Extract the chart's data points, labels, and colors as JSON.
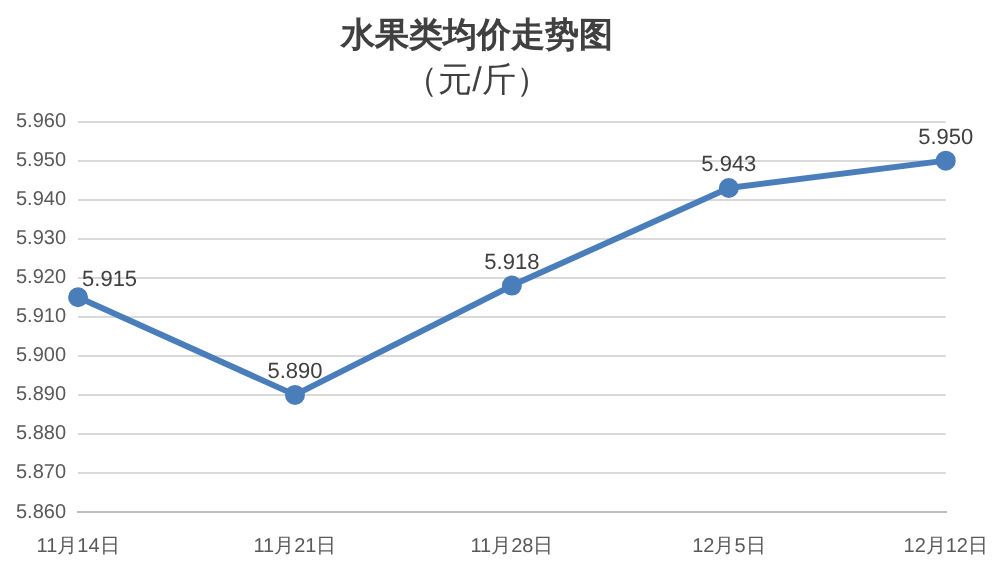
{
  "chart_data": {
    "type": "line",
    "title": "水果类均价走势图",
    "subtitle": "（元/斤）",
    "categories": [
      "11月14日",
      "11月21日",
      "11月28日",
      "12月5日",
      "12月12日"
    ],
    "series": [
      {
        "color": "#4a7ebb",
        "values": [
          5.915,
          5.89,
          5.918,
          5.943,
          5.95
        ],
        "value_labels": [
          "5.915",
          "5.890",
          "5.918",
          "5.943",
          "5.950"
        ]
      }
    ],
    "ylim": [
      5.86,
      5.96
    ],
    "yticks": [
      {
        "value": 5.86,
        "label": "5.860"
      },
      {
        "value": 5.87,
        "label": "5.870"
      },
      {
        "value": 5.88,
        "label": "5.880"
      },
      {
        "value": 5.89,
        "label": "5.890"
      },
      {
        "value": 5.9,
        "label": "5.900"
      },
      {
        "value": 5.91,
        "label": "5.910"
      },
      {
        "value": 5.92,
        "label": "5.920"
      },
      {
        "value": 5.93,
        "label": "5.930"
      },
      {
        "value": 5.94,
        "label": "5.940"
      },
      {
        "value": 5.95,
        "label": "5.950"
      },
      {
        "value": 5.96,
        "label": "5.960"
      }
    ],
    "grid": "y",
    "legend": false,
    "marker": "circle",
    "line_style": "solid"
  }
}
